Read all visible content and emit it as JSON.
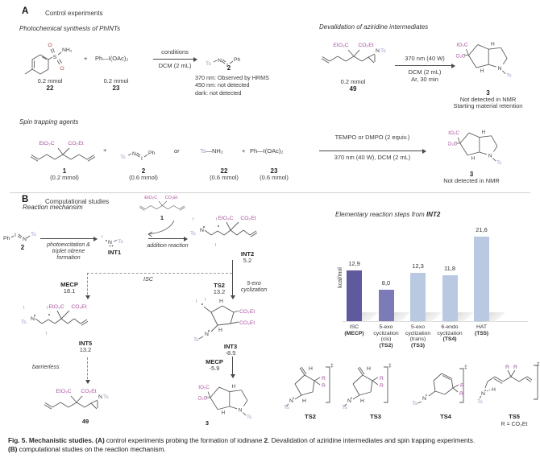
{
  "labels": {
    "EtO2C": "EtO₂C",
    "CO2Et": "CO₂Et",
    "Ts": "Ts",
    "N": "N",
    "NH2": "NH₂",
    "H": "H",
    "S": "S",
    "O": "O",
    "R": "R",
    "Ph": "Ph",
    "I": "I",
    "plus": "+",
    "dagger": "‡",
    "up": "↑",
    "NTs_n": "N",
    "NTs_ts": "Ts"
  },
  "panelA": {
    "label": "A",
    "title": "Control experiments",
    "photochem": {
      "title": "Photochemical synthesis of PhINTs",
      "r1_amount": "0.2 mmol",
      "r1_id": "22",
      "r2_formula": "Ph—I(OAc)₂",
      "r2_amount": "0.2 mmol",
      "r2_id": "23",
      "cond_top": "conditions",
      "cond_bottom": "DCM (2 mL)",
      "product_id": "2",
      "notes": {
        "l1": "370 nm: Observed by HRMS",
        "l2": "450 nm: not detected",
        "l3": "dark: not detected"
      }
    },
    "devalidation": {
      "title": "Devalidation of aziridine intermediates",
      "r_amount": "0.2 mmol",
      "r_id": "49",
      "cond_top": "370 nm (40 W)",
      "cond_mid": "DCM (2 mL)",
      "cond_bottom": "Ar, 30 min",
      "product_id": "3",
      "note1": "Not detected in NMR",
      "note2": "Starting material retention"
    },
    "spintrap": {
      "title": "Spin trapping agents",
      "c1_id": "1",
      "c1_amount": "(0.2 mmol)",
      "c2_id": "2",
      "c2_amount": "(0.6 mmol)",
      "or": "or",
      "c22_ts": "Ts",
      "c22_rest": "—NH₂",
      "c22_id": "22",
      "c22_amount": "(0.6 mmol)",
      "c23_formula": "Ph—I(OAc)₂",
      "c23_id": "23",
      "c23_amount": "(0.6 mmol)",
      "cond_top": "TEMPO or DMPO (2 equiv.)",
      "cond_bottom": "370 nm (40 W), DCM (2 mL)",
      "product_id": "3",
      "note": "Not detected in NMR"
    }
  },
  "panelB": {
    "label": "B",
    "title": "Computational studies",
    "mechanism": {
      "title": "Reaction mechansim",
      "compound2_id": "2",
      "step1_l1": "photoexcitation &",
      "step1_l2": "triplet nitrene",
      "step1_l3": "formation",
      "int1": "INT1",
      "compound1_id": "1",
      "step2": "addition reaction",
      "int2": "INT2",
      "int2_e": "5.2",
      "mecp1": "MECP",
      "mecp1_e": "18.1",
      "isc": "ISC",
      "ts2": "TS2",
      "ts2_e": "13.2",
      "ts2_l1": "5-exo",
      "ts2_l2": "cyclization",
      "int5": "INT5",
      "int5_e": "13.2",
      "barrierless": "barrierless",
      "c49": "49",
      "int3": "INT3",
      "int3_e": "-8.5",
      "mecp2": "MECP",
      "mecp2_e": "-5.9",
      "c3": "3"
    },
    "chart_title_plain": "Elementary reaction steps from ",
    "chart_title_bold": "INT2",
    "ts_row": {
      "ts2": "TS2",
      "ts3": "TS3",
      "ts4": "TS4",
      "ts5": "TS5",
      "r_note": "R = CO₂Et"
    }
  },
  "chart_data": {
    "type": "bar",
    "title": "Elementary reaction steps from INT2",
    "xlabel": "",
    "ylabel": "kcal/mol",
    "ylim": [
      0,
      24
    ],
    "grid": false,
    "legend": "none",
    "values": [
      12.9,
      8.0,
      12.3,
      11.8,
      21.6
    ],
    "value_labels": [
      "12,9",
      "8,0",
      "12,3",
      "11,8",
      "21,6"
    ],
    "bar_colors": [
      "#5f5a9e",
      "#7c7bb7",
      "#b9c9e2",
      "#b9c9e2",
      "#b9c9e2"
    ],
    "categories": [
      {
        "lines": [
          "ISC"
        ],
        "tag": "(MECP)"
      },
      {
        "lines": [
          "5-exo",
          "cyclization",
          "(cis)"
        ],
        "tag": "(TS2)"
      },
      {
        "lines": [
          "5-exo",
          "cyclization",
          "(trans)"
        ],
        "tag": "(TS3)"
      },
      {
        "lines": [
          "6-endo",
          "cyclization"
        ],
        "tag": "(TS4)"
      },
      {
        "lines": [
          "HAT"
        ],
        "tag": "(TS5)"
      }
    ]
  },
  "caption": {
    "lead": "Fig. 5. Mechanistic studies.",
    "a_tag": " (A)",
    "a_text1": " control experiments probing the formation of iodinane ",
    "a_bold": "2",
    "a_text2": ". Devalidation of aziridine intermediates and spin trapping experiments.",
    "b_tag": "(B)",
    "b_text": " computational studies on the reaction mechanism."
  },
  "colors": {
    "ts_label": "#9a9cc9",
    "ester_label": "#a9519f",
    "bar_dark": "#5f5a9e",
    "bar_mid": "#7c7bb7",
    "bar_light": "#b9c9e2"
  }
}
